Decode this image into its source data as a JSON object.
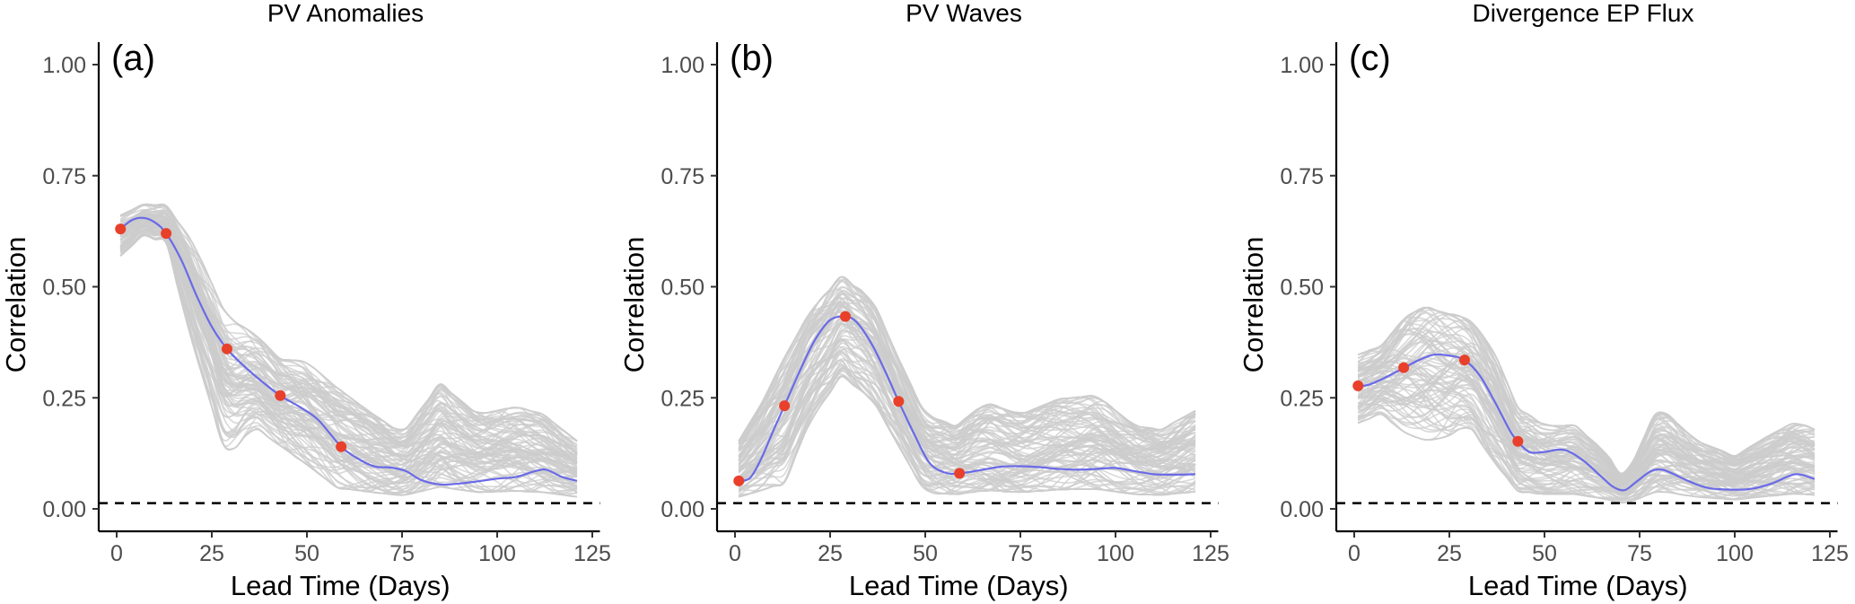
{
  "chart_data": [
    {
      "type": "line",
      "panel_tag": "(a)",
      "title": "PV Anomalies",
      "xlabel": "Lead Time (Days)",
      "ylabel": "Correlation",
      "xlim": [
        -5,
        127
      ],
      "ylim": [
        -0.05,
        1.05
      ],
      "xticks": [
        0,
        25,
        50,
        75,
        100,
        125
      ],
      "xtick_labels": [
        "0",
        "25",
        "50",
        "75",
        "100",
        "125"
      ],
      "yticks": [
        0,
        0.25,
        0.5,
        0.75,
        1.0
      ],
      "ytick_labels": [
        "0.00",
        "0.25",
        "0.50",
        "0.75",
        "1.00"
      ],
      "grid": false,
      "reference_line": {
        "y": 0.013,
        "style": "dashed",
        "color": "#000000"
      },
      "ensemble": {
        "color": "#cccccc",
        "count_approx": 100,
        "x_range": [
          1,
          121
        ],
        "envelope": {
          "x": [
            1,
            7,
            13,
            20,
            29,
            36,
            43,
            50,
            58,
            66,
            75,
            85,
            95,
            105,
            112,
            121
          ],
          "lower": [
            0.55,
            0.6,
            0.58,
            0.32,
            0.05,
            0.14,
            0.1,
            0.05,
            0.0,
            0.0,
            0.0,
            0.0,
            0.0,
            0.0,
            0.0,
            0.0
          ],
          "upper": [
            0.68,
            0.7,
            0.7,
            0.65,
            0.5,
            0.44,
            0.38,
            0.38,
            0.32,
            0.26,
            0.2,
            0.33,
            0.25,
            0.27,
            0.25,
            0.18
          ]
        }
      },
      "series": [
        {
          "name": "ensemble mean",
          "color": "#6a6ae8",
          "x": [
            1,
            4,
            7,
            10,
            13,
            17,
            21,
            25,
            29,
            33,
            37,
            43,
            48,
            53,
            59,
            64,
            68,
            72,
            76,
            80,
            85,
            90,
            95,
            100,
            105,
            110,
            113,
            117,
            121
          ],
          "y": [
            0.63,
            0.65,
            0.655,
            0.645,
            0.62,
            0.56,
            0.48,
            0.41,
            0.36,
            0.325,
            0.295,
            0.255,
            0.23,
            0.2,
            0.14,
            0.11,
            0.095,
            0.093,
            0.085,
            0.065,
            0.055,
            0.057,
            0.062,
            0.068,
            0.072,
            0.085,
            0.088,
            0.072,
            0.063
          ]
        },
        {
          "name": "highlighted points",
          "color": "#e8402b",
          "x": [
            1,
            13,
            29,
            43,
            59
          ],
          "y": [
            0.63,
            0.62,
            0.36,
            0.255,
            0.14
          ]
        }
      ]
    },
    {
      "type": "line",
      "panel_tag": "(b)",
      "title": "PV Waves",
      "xlabel": "Lead Time (Days)",
      "ylabel": "Correlation",
      "xlim": [
        -5,
        127
      ],
      "ylim": [
        -0.05,
        1.05
      ],
      "xticks": [
        0,
        25,
        50,
        75,
        100,
        125
      ],
      "xtick_labels": [
        "0",
        "25",
        "50",
        "75",
        "100",
        "125"
      ],
      "yticks": [
        0,
        0.25,
        0.5,
        0.75,
        1.0
      ],
      "ytick_labels": [
        "0.00",
        "0.25",
        "0.50",
        "0.75",
        "1.00"
      ],
      "grid": false,
      "reference_line": {
        "y": 0.013,
        "style": "dashed",
        "color": "#000000"
      },
      "ensemble": {
        "color": "#cccccc",
        "count_approx": 100,
        "x_range": [
          1,
          121
        ],
        "envelope": {
          "x": [
            1,
            7,
            13,
            20,
            28,
            36,
            43,
            50,
            58,
            66,
            75,
            85,
            95,
            105,
            112,
            121
          ],
          "lower": [
            0.0,
            0.0,
            0.0,
            0.15,
            0.25,
            0.2,
            0.1,
            0.0,
            0.0,
            0.0,
            0.0,
            0.0,
            0.0,
            0.0,
            0.0,
            0.0
          ],
          "upper": [
            0.18,
            0.28,
            0.4,
            0.5,
            0.57,
            0.52,
            0.38,
            0.25,
            0.22,
            0.28,
            0.25,
            0.29,
            0.3,
            0.22,
            0.21,
            0.26
          ]
        }
      },
      "series": [
        {
          "name": "ensemble mean",
          "color": "#6a6ae8",
          "x": [
            1,
            4,
            7,
            10,
            13,
            17,
            21,
            25,
            29,
            32,
            36,
            40,
            43,
            47,
            51,
            55,
            59,
            65,
            70,
            75,
            80,
            85,
            90,
            95,
            100,
            105,
            110,
            115,
            121
          ],
          "y": [
            0.063,
            0.07,
            0.115,
            0.175,
            0.232,
            0.31,
            0.38,
            0.425,
            0.433,
            0.42,
            0.37,
            0.3,
            0.242,
            0.17,
            0.105,
            0.082,
            0.08,
            0.088,
            0.095,
            0.096,
            0.094,
            0.09,
            0.088,
            0.09,
            0.092,
            0.085,
            0.078,
            0.077,
            0.078
          ]
        },
        {
          "name": "highlighted points",
          "color": "#e8402b",
          "x": [
            1,
            13,
            29,
            43,
            59
          ],
          "y": [
            0.063,
            0.232,
            0.433,
            0.242,
            0.08
          ]
        }
      ]
    },
    {
      "type": "line",
      "panel_tag": "(c)",
      "title": "Divergence EP Flux",
      "xlabel": "Lead Time (Days)",
      "ylabel": "Correlation",
      "xlim": [
        -5,
        127
      ],
      "ylim": [
        -0.05,
        1.05
      ],
      "xticks": [
        0,
        25,
        50,
        75,
        100,
        125
      ],
      "xtick_labels": [
        "0",
        "25",
        "50",
        "75",
        "100",
        "125"
      ],
      "yticks": [
        0,
        0.25,
        0.5,
        0.75,
        1.0
      ],
      "ytick_labels": [
        "0.00",
        "0.25",
        "0.50",
        "0.75",
        "1.00"
      ],
      "grid": false,
      "reference_line": {
        "y": 0.013,
        "style": "dashed",
        "color": "#000000"
      },
      "ensemble": {
        "color": "#cccccc",
        "count_approx": 100,
        "x_range": [
          1,
          121
        ],
        "envelope": {
          "x": [
            1,
            7,
            13,
            18,
            24,
            30,
            36,
            43,
            50,
            58,
            66,
            71,
            80,
            90,
            100,
            110,
            116,
            121
          ],
          "lower": [
            0.16,
            0.18,
            0.12,
            0.09,
            0.1,
            0.14,
            0.06,
            0.0,
            0.0,
            0.0,
            0.0,
            0.0,
            0.0,
            0.0,
            0.0,
            0.0,
            0.0,
            0.0
          ],
          "upper": [
            0.38,
            0.4,
            0.48,
            0.52,
            0.5,
            0.48,
            0.42,
            0.27,
            0.22,
            0.22,
            0.15,
            0.08,
            0.27,
            0.18,
            0.14,
            0.2,
            0.23,
            0.21
          ]
        }
      },
      "series": [
        {
          "name": "ensemble mean",
          "color": "#6a6ae8",
          "x": [
            1,
            4,
            8,
            13,
            17,
            21,
            25,
            29,
            33,
            37,
            41,
            43,
            46,
            50,
            55,
            60,
            65,
            68,
            71,
            74,
            78,
            81,
            84,
            88,
            93,
            100,
            105,
            110,
            116,
            121
          ],
          "y": [
            0.275,
            0.28,
            0.295,
            0.317,
            0.335,
            0.347,
            0.345,
            0.335,
            0.3,
            0.24,
            0.175,
            0.152,
            0.128,
            0.128,
            0.133,
            0.11,
            0.072,
            0.05,
            0.042,
            0.06,
            0.085,
            0.088,
            0.078,
            0.062,
            0.047,
            0.043,
            0.046,
            0.058,
            0.078,
            0.067
          ]
        },
        {
          "name": "highlighted points",
          "color": "#e8402b",
          "x": [
            1,
            13,
            29,
            43
          ],
          "y": [
            0.277,
            0.318,
            0.335,
            0.152
          ]
        }
      ]
    }
  ]
}
